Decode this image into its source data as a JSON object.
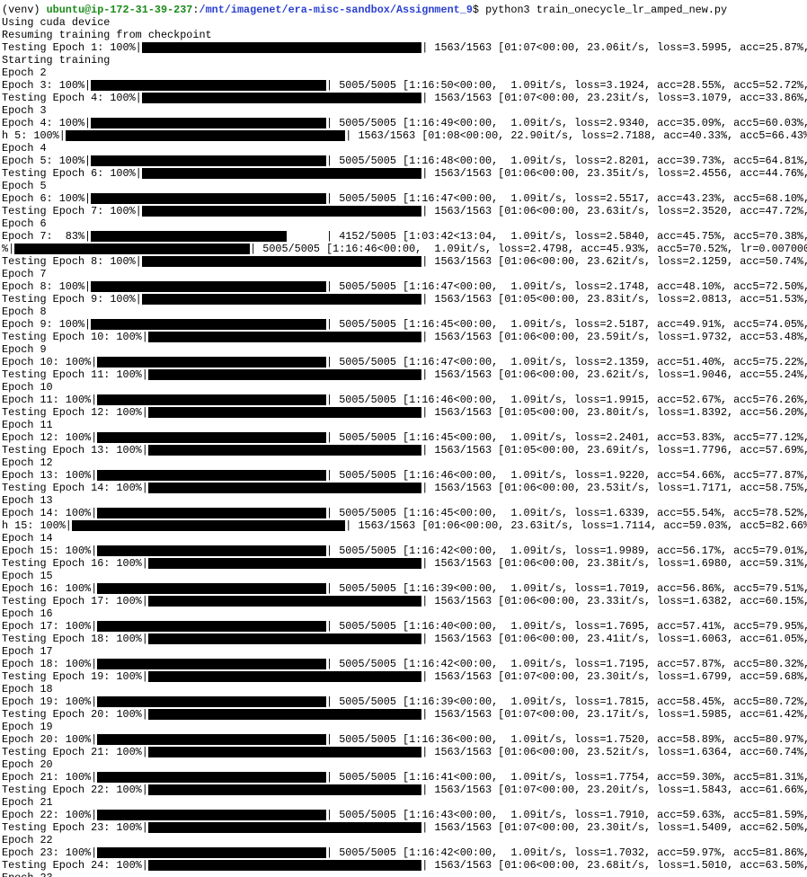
{
  "prompt": {
    "venv": "(venv) ",
    "user": "ubuntu@ip-172-31-39-237",
    "sep": ":",
    "path": "/mnt/imagenet/era-misc-sandbox/Assignment_9",
    "cmd": "$ python3 train_onecycle_lr_amped_new.py"
  },
  "lines": [
    "Using cuda device",
    "Resuming training from checkpoint",
    {
      "prefix": "Testing Epoch 1: 100%|",
      "suffix": "| 1563/1563 [01:07<00:00, 23.06it/s, loss=3.5995, acc=25.87%,"
    },
    "Starting training",
    "Epoch 2",
    {
      "prefix": "Epoch 3: 100%|",
      "suffix": "| 5005/5005 [1:16:50<00:00,  1.09it/s, loss=3.1924, acc=28.55%, acc5=52.72%,"
    },
    {
      "prefix": "Testing Epoch 4: 100%|",
      "suffix": "| 1563/1563 [01:07<00:00, 23.23it/s, loss=3.1079, acc=33.86%,"
    },
    "Epoch 3",
    {
      "prefix": "Epoch 4: 100%|",
      "suffix": "| 5005/5005 [1:16:49<00:00,  1.09it/s, loss=2.9340, acc=35.09%, acc5=60.03%,"
    },
    {
      "prefix": "h 5: 100%|",
      "suffix": "| 1563/1563 [01:08<00:00, 22.90it/s, loss=2.7188, acc=40.33%, acc5=66.43%]"
    },
    "Epoch 4",
    {
      "prefix": "Epoch 5: 100%|",
      "suffix": "| 5005/5005 [1:16:48<00:00,  1.09it/s, loss=2.8201, acc=39.73%, acc5=64.81%,"
    },
    {
      "prefix": "Testing Epoch 6: 100%|",
      "suffix": "| 1563/1563 [01:06<00:00, 23.35it/s, loss=2.4556, acc=44.76%,"
    },
    "Epoch 5",
    {
      "prefix": "Epoch 6: 100%|",
      "suffix": "| 5005/5005 [1:16:47<00:00,  1.09it/s, loss=2.5517, acc=43.23%, acc5=68.10%,"
    },
    {
      "prefix": "Testing Epoch 7: 100%|",
      "suffix": "| 1563/1563 [01:06<00:00, 23.63it/s, loss=2.3520, acc=47.72%,"
    },
    "Epoch 6",
    {
      "prefix": "Epoch 7:  83%|",
      "suffix": "| 4152/5005 [1:03:42<13:04,  1.09it/s, loss=2.5840, acc=45.75%, acc5=70.38%,"
    },
    {
      "prefix": "%|",
      "suffix": "| 5005/5005 [1:16:46<00:00,  1.09it/s, loss=2.4798, acc=45.93%, acc5=70.52%, lr=0.007000]"
    },
    {
      "prefix": "Testing Epoch 8: 100%|",
      "suffix": "| 1563/1563 [01:06<00:00, 23.62it/s, loss=2.1259, acc=50.74%,"
    },
    "Epoch 7",
    {
      "prefix": "Epoch 8: 100%|",
      "suffix": "| 5005/5005 [1:16:47<00:00,  1.09it/s, loss=2.1748, acc=48.10%, acc5=72.50%,"
    },
    {
      "prefix": "Testing Epoch 9: 100%|",
      "suffix": "| 1563/1563 [01:05<00:00, 23.83it/s, loss=2.0813, acc=51.53%,"
    },
    "Epoch 8",
    {
      "prefix": "Epoch 9: 100%|",
      "suffix": "| 5005/5005 [1:16:45<00:00,  1.09it/s, loss=2.5187, acc=49.91%, acc5=74.05%,"
    },
    {
      "prefix": "Testing Epoch 10: 100%|",
      "suffix": "| 1563/1563 [01:06<00:00, 23.59it/s, loss=1.9732, acc=53.48%,"
    },
    "Epoch 9",
    {
      "prefix": "Epoch 10: 100%|",
      "suffix": "| 5005/5005 [1:16:47<00:00,  1.09it/s, loss=2.1359, acc=51.40%, acc5=75.22%,"
    },
    {
      "prefix": "Testing Epoch 11: 100%|",
      "suffix": "| 1563/1563 [01:06<00:00, 23.62it/s, loss=1.9046, acc=55.24%,"
    },
    "Epoch 10",
    {
      "prefix": "Epoch 11: 100%|",
      "suffix": "| 5005/5005 [1:16:46<00:00,  1.09it/s, loss=1.9915, acc=52.67%, acc5=76.26%,"
    },
    {
      "prefix": "Testing Epoch 12: 100%|",
      "suffix": "| 1563/1563 [01:05<00:00, 23.80it/s, loss=1.8392, acc=56.20%,"
    },
    "Epoch 11",
    {
      "prefix": "Epoch 12: 100%|",
      "suffix": "| 5005/5005 [1:16:45<00:00,  1.09it/s, loss=2.2401, acc=53.83%, acc5=77.12%,"
    },
    {
      "prefix": "Testing Epoch 13: 100%|",
      "suffix": "| 1563/1563 [01:05<00:00, 23.69it/s, loss=1.7796, acc=57.69%,"
    },
    "Epoch 12",
    {
      "prefix": "Epoch 13: 100%|",
      "suffix": "| 5005/5005 [1:16:46<00:00,  1.09it/s, loss=1.9220, acc=54.66%, acc5=77.87%,"
    },
    {
      "prefix": "Testing Epoch 14: 100%|",
      "suffix": "| 1563/1563 [01:06<00:00, 23.53it/s, loss=1.7171, acc=58.75%,"
    },
    "Epoch 13",
    {
      "prefix": "Epoch 14: 100%|",
      "suffix": "| 5005/5005 [1:16:45<00:00,  1.09it/s, loss=1.6339, acc=55.54%, acc5=78.52%,"
    },
    {
      "prefix": "h 15: 100%|",
      "suffix": "| 1563/1563 [01:06<00:00, 23.63it/s, loss=1.7114, acc=59.03%, acc5=82.66%]"
    },
    "Epoch 14",
    {
      "prefix": "Epoch 15: 100%|",
      "suffix": "| 5005/5005 [1:16:42<00:00,  1.09it/s, loss=1.9989, acc=56.17%, acc5=79.01%,"
    },
    {
      "prefix": "Testing Epoch 16: 100%|",
      "suffix": "| 1563/1563 [01:06<00:00, 23.38it/s, loss=1.6980, acc=59.31%,"
    },
    "Epoch 15",
    {
      "prefix": "Epoch 16: 100%|",
      "suffix": "| 5005/5005 [1:16:39<00:00,  1.09it/s, loss=1.7019, acc=56.86%, acc5=79.51%,"
    },
    {
      "prefix": "Testing Epoch 17: 100%|",
      "suffix": "| 1563/1563 [01:06<00:00, 23.33it/s, loss=1.6382, acc=60.15%,"
    },
    "Epoch 16",
    {
      "prefix": "Epoch 17: 100%|",
      "suffix": "| 5005/5005 [1:16:40<00:00,  1.09it/s, loss=1.7695, acc=57.41%, acc5=79.95%,"
    },
    {
      "prefix": "Testing Epoch 18: 100%|",
      "suffix": "| 1563/1563 [01:06<00:00, 23.41it/s, loss=1.6063, acc=61.05%,"
    },
    "Epoch 17",
    {
      "prefix": "Epoch 18: 100%|",
      "suffix": "| 5005/5005 [1:16:42<00:00,  1.09it/s, loss=1.7195, acc=57.87%, acc5=80.32%,"
    },
    {
      "prefix": "Testing Epoch 19: 100%|",
      "suffix": "| 1563/1563 [01:07<00:00, 23.30it/s, loss=1.6799, acc=59.68%,"
    },
    "Epoch 18",
    {
      "prefix": "Epoch 19: 100%|",
      "suffix": "| 5005/5005 [1:16:39<00:00,  1.09it/s, loss=1.7815, acc=58.45%, acc5=80.72%,"
    },
    {
      "prefix": "Testing Epoch 20: 100%|",
      "suffix": "| 1563/1563 [01:07<00:00, 23.17it/s, loss=1.5985, acc=61.42%,"
    },
    "Epoch 19",
    {
      "prefix": "Epoch 20: 100%|",
      "suffix": "| 5005/5005 [1:16:36<00:00,  1.09it/s, loss=1.7520, acc=58.89%, acc5=80.97%,"
    },
    {
      "prefix": "Testing Epoch 21: 100%|",
      "suffix": "| 1563/1563 [01:06<00:00, 23.52it/s, loss=1.6364, acc=60.74%,"
    },
    "Epoch 20",
    {
      "prefix": "Epoch 21: 100%|",
      "suffix": "| 5005/5005 [1:16:41<00:00,  1.09it/s, loss=1.7754, acc=59.30%, acc5=81.31%,"
    },
    {
      "prefix": "Testing Epoch 22: 100%|",
      "suffix": "| 1563/1563 [01:07<00:00, 23.20it/s, loss=1.5843, acc=61.66%,"
    },
    "Epoch 21",
    {
      "prefix": "Epoch 22: 100%|",
      "suffix": "| 5005/5005 [1:16:43<00:00,  1.09it/s, loss=1.7910, acc=59.63%, acc5=81.59%,"
    },
    {
      "prefix": "Testing Epoch 23: 100%|",
      "suffix": "| 1563/1563 [01:07<00:00, 23.30it/s, loss=1.5409, acc=62.50%,"
    },
    "Epoch 22",
    {
      "prefix": "Epoch 23: 100%|",
      "suffix": "| 5005/5005 [1:16:42<00:00,  1.09it/s, loss=1.7032, acc=59.97%, acc5=81.86%,"
    },
    {
      "prefix": "Testing Epoch 24: 100%|",
      "suffix": "| 1563/1563 [01:06<00:00, 23.68it/s, loss=1.5010, acc=63.50%,"
    },
    "Epoch 23"
  ]
}
